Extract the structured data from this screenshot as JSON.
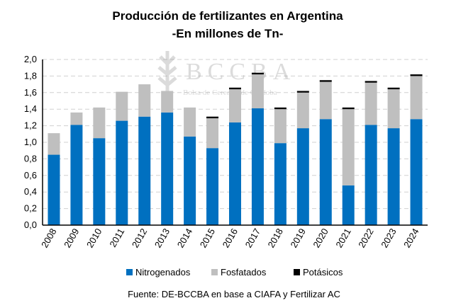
{
  "chart_data": {
    "type": "bar",
    "stacked": true,
    "title": "Producción de fertilizantes en Argentina",
    "subtitle": "-En millones de Tn-",
    "xlabel": "",
    "ylabel": "",
    "ylim": [
      0,
      2.0
    ],
    "yticks": [
      "0,0",
      "0,2",
      "0,4",
      "0,6",
      "0,8",
      "1,0",
      "1,2",
      "1,4",
      "1,6",
      "1,8",
      "2,0"
    ],
    "grid": true,
    "legend_position": "bottom",
    "categories": [
      "2008",
      "2009",
      "2010",
      "2011",
      "2012",
      "2013",
      "2014",
      "2015",
      "2016",
      "2017",
      "2018",
      "2019",
      "2020",
      "2021",
      "2022",
      "2023",
      "2024"
    ],
    "series": [
      {
        "name": "Nitrogenados",
        "color": "#0070c0",
        "values": [
          0.85,
          1.21,
          1.05,
          1.26,
          1.31,
          1.36,
          1.07,
          0.93,
          1.24,
          1.41,
          0.99,
          1.17,
          1.28,
          0.48,
          1.21,
          1.17,
          1.28
        ]
      },
      {
        "name": "Fosfatados",
        "color": "#bfbfbf",
        "values": [
          0.26,
          0.15,
          0.37,
          0.35,
          0.39,
          0.26,
          0.35,
          0.36,
          0.4,
          0.41,
          0.41,
          0.43,
          0.45,
          0.92,
          0.51,
          0.47,
          0.52
        ]
      },
      {
        "name": "Potásicos",
        "color": "#000000",
        "values": [
          0,
          0,
          0,
          0,
          0,
          0,
          0,
          0.02,
          0.02,
          0.02,
          0.02,
          0.02,
          0.02,
          0.02,
          0.02,
          0.02,
          0.02
        ]
      }
    ],
    "source": "Fuente: DE-BCCBA en base a CIAFA y Fertilizar AC",
    "watermark": {
      "text": "BCCBA",
      "subtext": "Bolsa de Cereales de Córdoba"
    }
  }
}
